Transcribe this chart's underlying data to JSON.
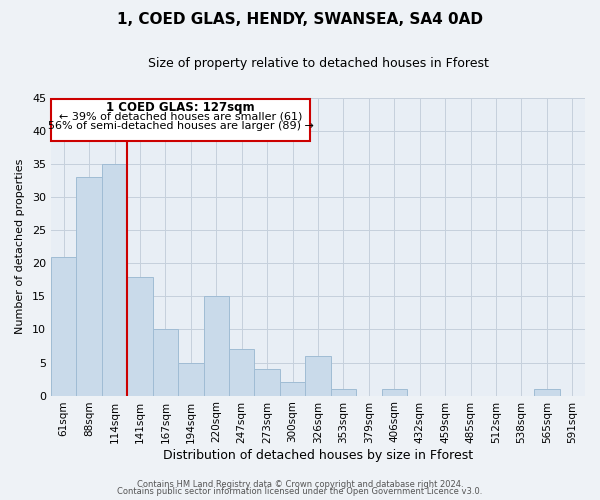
{
  "title": "1, COED GLAS, HENDY, SWANSEA, SA4 0AD",
  "subtitle": "Size of property relative to detached houses in Fforest",
  "xlabel": "Distribution of detached houses by size in Fforest",
  "ylabel": "Number of detached properties",
  "bar_labels": [
    "61sqm",
    "88sqm",
    "114sqm",
    "141sqm",
    "167sqm",
    "194sqm",
    "220sqm",
    "247sqm",
    "273sqm",
    "300sqm",
    "326sqm",
    "353sqm",
    "379sqm",
    "406sqm",
    "432sqm",
    "459sqm",
    "485sqm",
    "512sqm",
    "538sqm",
    "565sqm",
    "591sqm"
  ],
  "bar_values": [
    21,
    33,
    35,
    18,
    10,
    5,
    15,
    7,
    4,
    2,
    6,
    1,
    0,
    1,
    0,
    0,
    0,
    0,
    0,
    1,
    0
  ],
  "bar_color": "#c9daea",
  "bar_edge_color": "#a0bcd4",
  "ylim": [
    0,
    45
  ],
  "yticks": [
    0,
    5,
    10,
    15,
    20,
    25,
    30,
    35,
    40,
    45
  ],
  "property_line_x": 2.5,
  "property_line_color": "#cc0000",
  "annotation_title": "1 COED GLAS: 127sqm",
  "annotation_line1": "← 39% of detached houses are smaller (61)",
  "annotation_line2": "56% of semi-detached houses are larger (89) →",
  "footer1": "Contains HM Land Registry data © Crown copyright and database right 2024.",
  "footer2": "Contains public sector information licensed under the Open Government Licence v3.0.",
  "background_color": "#eef2f6",
  "plot_bg_color": "#e8eef5",
  "grid_color": "#c5d0dc",
  "title_fontsize": 11,
  "subtitle_fontsize": 9,
  "xlabel_fontsize": 9,
  "ylabel_fontsize": 8,
  "tick_fontsize": 8,
  "xtick_fontsize": 7.5
}
